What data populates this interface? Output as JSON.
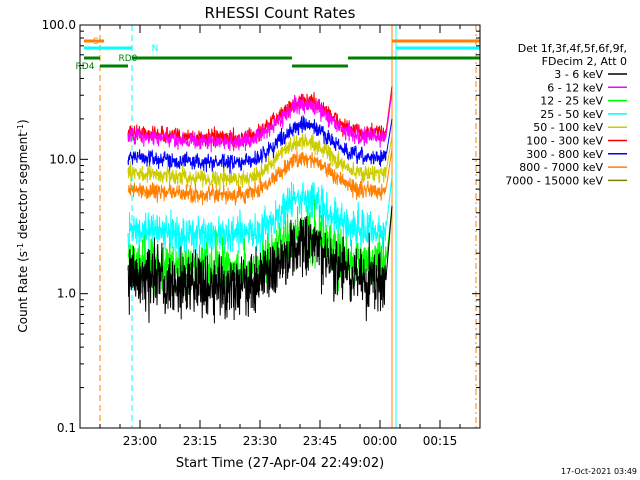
{
  "chart_data": {
    "type": "line",
    "title": "RHESSI Count Rates",
    "xlabel": "Start Time (27-Apr-04 22:49:02)",
    "ylabel_main": "Count Rate (s",
    "ylabel_sup1": "-1",
    "ylabel_mid": " detector segment",
    "ylabel_sup2": "-1",
    "ylabel_end": ")",
    "yscale": "log",
    "ylim": [
      0.1,
      100
    ],
    "xlim_minutes": [
      -4,
      96
    ],
    "x_tick_labels": [
      "23:00",
      "23:15",
      "23:30",
      "23:45",
      "00:00",
      "00:15"
    ],
    "x_tick_minutes": [
      11,
      26,
      41,
      56,
      71,
      86
    ],
    "y_tick_labels": [
      "0.1",
      "1.0",
      "10.0",
      "100.0"
    ],
    "y_tick_values": [
      0.1,
      1,
      10,
      100
    ],
    "legend_position": "right",
    "legend_header": [
      "Det 1f,3f,4f,5f,6f,9f,",
      "FDecim 2, Att 0"
    ],
    "series": [
      {
        "name": "3 - 6 keV",
        "color": "#000000",
        "values_start_end": [
          1.3,
          4.5
        ]
      },
      {
        "name": "6 - 12 keV",
        "color": "#ff00ff",
        "values_start_end": [
          15,
          32
        ]
      },
      {
        "name": "12 - 25 keV",
        "color": "#00ff00",
        "values_start_end": [
          1.7,
          4.5
        ]
      },
      {
        "name": "25 - 50 keV",
        "color": "#00ffff",
        "values_start_end": [
          3.0,
          7.5
        ]
      },
      {
        "name": "50 - 100 keV",
        "color": "#cccc00",
        "values_start_end": [
          8.0,
          15
        ]
      },
      {
        "name": "100 - 300 keV",
        "color": "#ff0000",
        "values_start_end": [
          16,
          35
        ]
      },
      {
        "name": "300 - 800 keV",
        "color": "#0000ff",
        "values_start_end": [
          10.5,
          20
        ]
      },
      {
        "name": "800 - 7000 keV",
        "color": "#ff8000",
        "values_start_end": [
          6.0,
          12
        ]
      },
      {
        "name": "7000 - 15000 keV",
        "color": "#808000",
        "values_start_end": [
          null,
          null
        ]
      }
    ],
    "data_start_minutes": 8,
    "data_end_minutes": 74,
    "flags": [
      {
        "label": "S",
        "color": "#ff8000",
        "segments": [
          [
            -3,
            2
          ],
          [
            74,
            96
          ]
        ]
      },
      {
        "label": "N",
        "color": "#00ffff",
        "segments": [
          [
            -3,
            9
          ],
          [
            75,
            96
          ]
        ]
      },
      {
        "label": "RD0",
        "color": "#008000",
        "segments": [
          [
            -3,
            1
          ],
          [
            9,
            49
          ],
          [
            63,
            96
          ]
        ]
      },
      {
        "label": "RD4",
        "color": "#008000",
        "segments": [
          [
            1,
            8
          ],
          [
            49,
            63
          ]
        ]
      }
    ],
    "vertical_markers": [
      {
        "minutes": -4,
        "color": "#00ffff",
        "style": "solid"
      },
      {
        "minutes": 1,
        "color": "#ff8000",
        "style": "dash"
      },
      {
        "minutes": 9,
        "color": "#00ffff",
        "style": "dash"
      },
      {
        "minutes": 74,
        "color": "#ff8000",
        "style": "solid"
      },
      {
        "minutes": 75,
        "color": "#00ffff",
        "style": "solid"
      },
      {
        "minutes": 95,
        "color": "#ff8000",
        "style": "dashdot"
      }
    ],
    "footer_date": "17-Oct-2021 03:49"
  }
}
